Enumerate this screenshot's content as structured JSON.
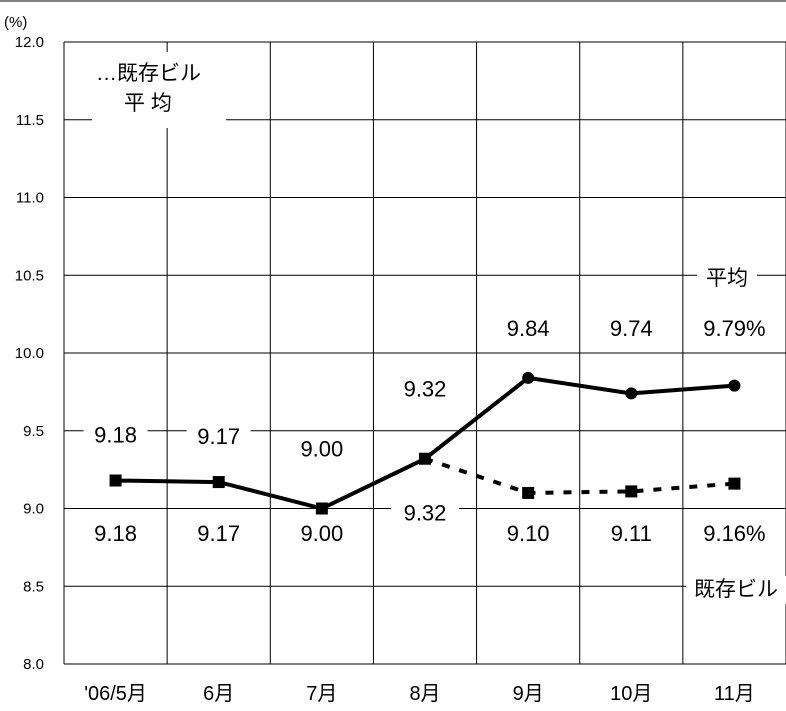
{
  "chart_data": {
    "type": "line",
    "y_unit": "(%)",
    "ylim": [
      8.0,
      12.0
    ],
    "y_ticks": [
      "12.0",
      "11.5",
      "11.0",
      "10.5",
      "10.0",
      "9.5",
      "9.0",
      "8.5",
      "8.0"
    ],
    "categories": [
      "'06/5月",
      "6月",
      "7月",
      "8月",
      "9月",
      "10月",
      "11月"
    ],
    "grid": true,
    "legend_note": [
      "…既存ビル",
      "平 均"
    ],
    "series": [
      {
        "name": "平均",
        "style": "solid",
        "marker": "circle",
        "values": [
          9.18,
          9.17,
          9.0,
          9.32,
          9.84,
          9.74,
          9.79
        ],
        "labels": [
          "9.18",
          "9.17",
          "9.00",
          "9.32",
          "9.84",
          "9.74",
          "9.79%"
        ]
      },
      {
        "name": "既存ビル",
        "style": "dotted",
        "marker": "square",
        "values": [
          9.18,
          9.17,
          9.0,
          9.32,
          9.1,
          9.11,
          9.16
        ],
        "labels": [
          "9.18",
          "9.17",
          "9.00",
          "9.32",
          "9.10",
          "9.11",
          "9.16%"
        ]
      }
    ],
    "colors": {
      "line": "#000000",
      "grid": "#000000",
      "background": "#ffffff"
    }
  }
}
